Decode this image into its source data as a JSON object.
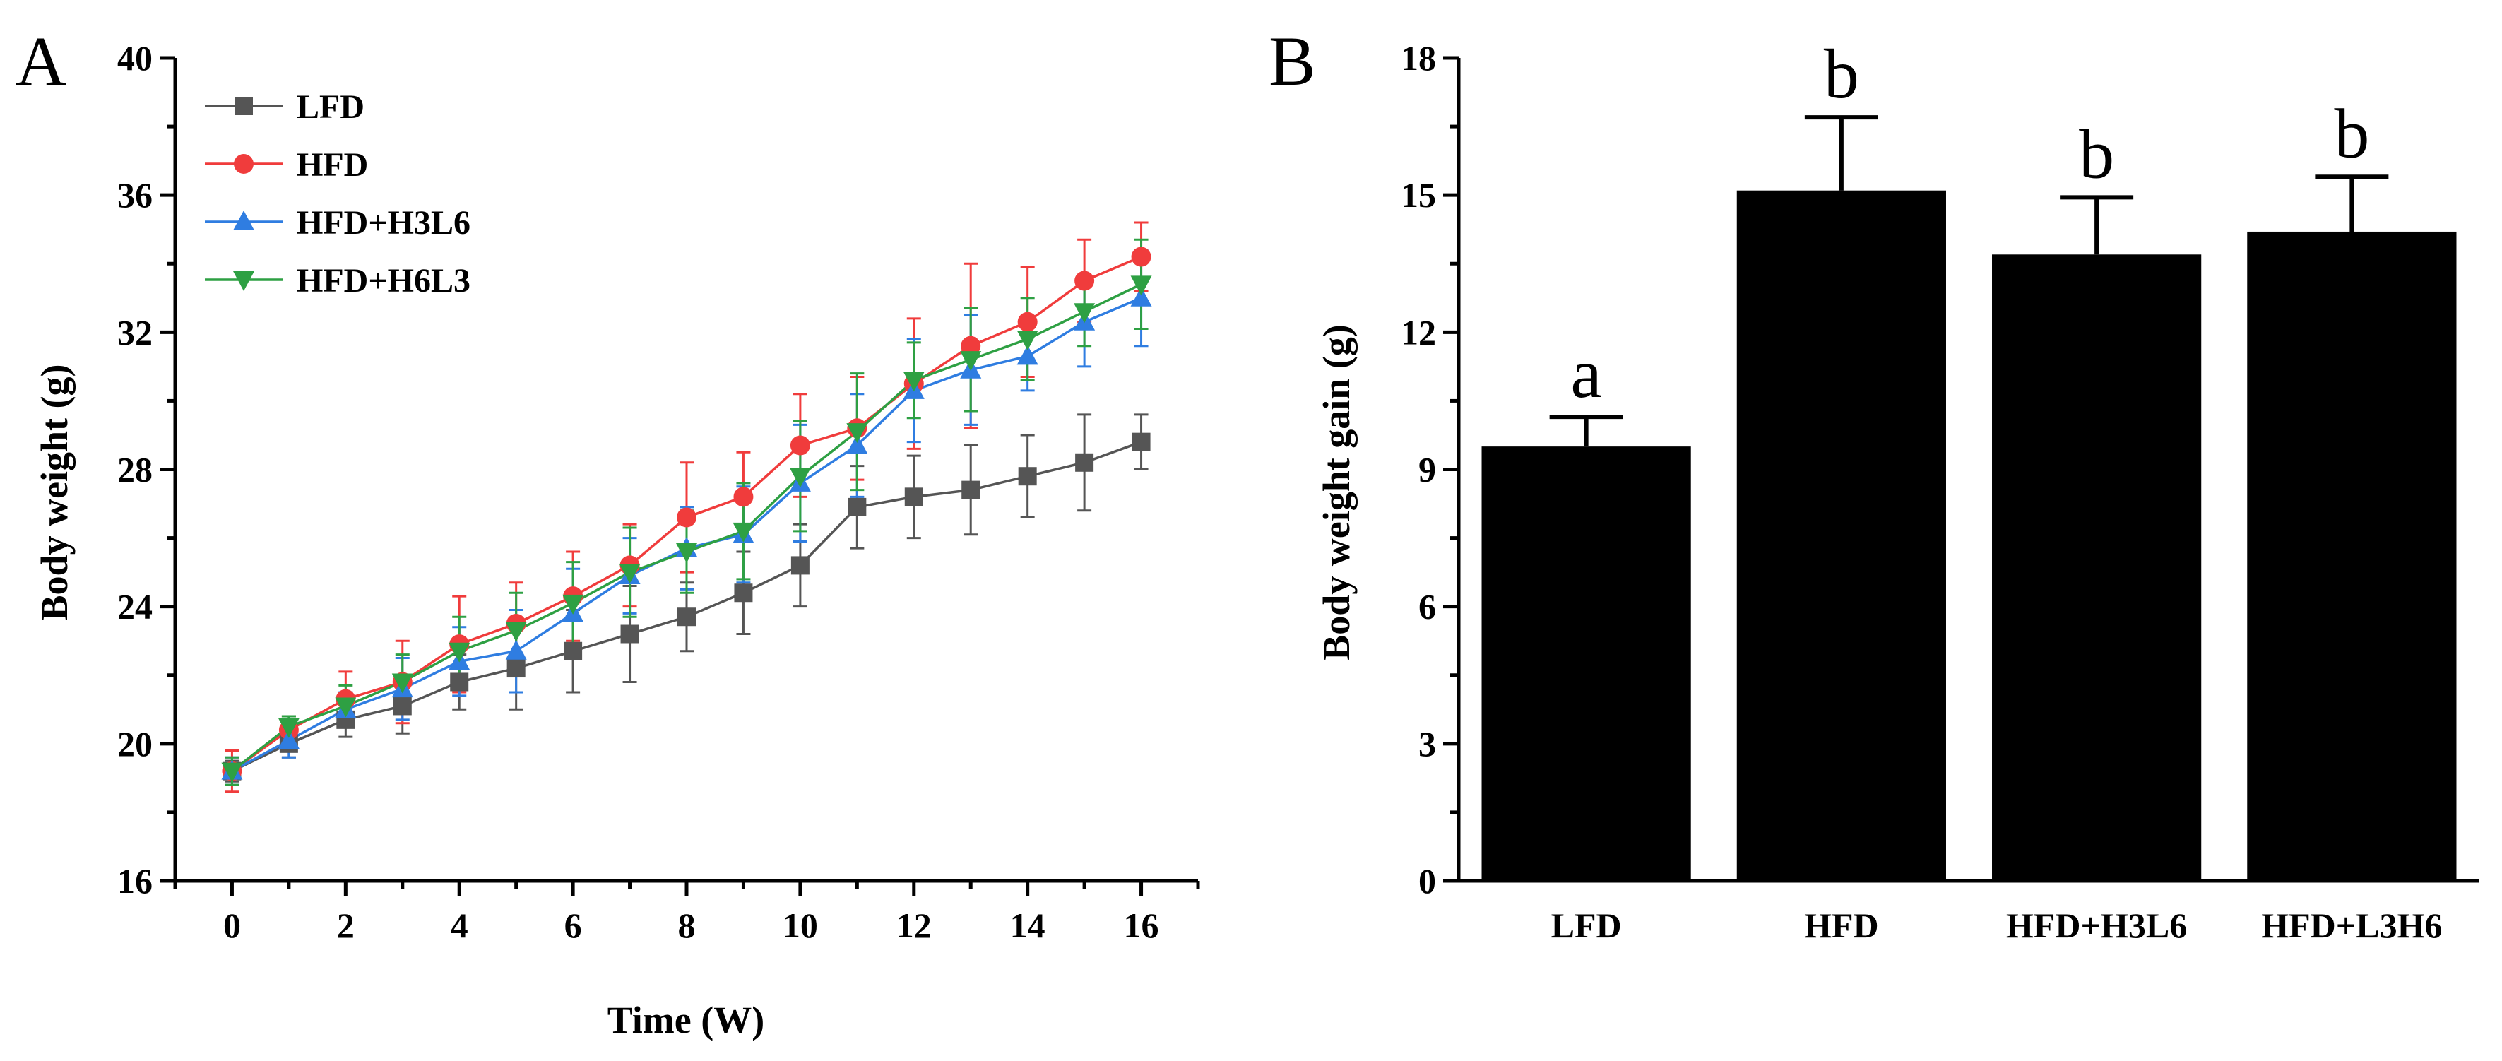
{
  "chart_data": [
    {
      "panel": "A",
      "type": "line",
      "xlabel": "Time (W)",
      "ylabel": "Body weight (g)",
      "xlim": [
        -1,
        17
      ],
      "ylim": [
        16,
        40
      ],
      "xticks": [
        0,
        2,
        4,
        6,
        8,
        10,
        12,
        14,
        16
      ],
      "yticks": [
        16,
        20,
        24,
        28,
        32,
        36,
        40
      ],
      "legend_position": "top-left",
      "x": [
        0,
        1,
        2,
        3,
        4,
        5,
        6,
        7,
        8,
        9,
        10,
        11,
        12,
        13,
        14,
        15,
        16
      ],
      "series": [
        {
          "name": "LFD",
          "color": "#555555",
          "marker": "square",
          "values": [
            19.2,
            20.0,
            20.7,
            21.1,
            21.8,
            22.2,
            22.7,
            23.2,
            23.7,
            24.4,
            25.2,
            26.9,
            27.2,
            27.4,
            27.8,
            28.2,
            28.8
          ],
          "errors": [
            0.3,
            0.4,
            0.5,
            0.8,
            0.8,
            1.2,
            1.2,
            1.4,
            1.0,
            1.2,
            1.2,
            1.2,
            1.2,
            1.3,
            1.2,
            1.4,
            0.8
          ]
        },
        {
          "name": "HFD",
          "color": "#f03c3c",
          "marker": "circle",
          "values": [
            19.2,
            20.4,
            21.3,
            21.8,
            22.9,
            23.5,
            24.3,
            25.2,
            26.6,
            27.2,
            28.7,
            29.2,
            30.5,
            31.6,
            32.3,
            33.5,
            34.2
          ],
          "errors": [
            0.6,
            0.4,
            0.8,
            1.2,
            1.4,
            1.2,
            1.3,
            1.2,
            1.6,
            1.3,
            1.5,
            1.5,
            1.9,
            2.4,
            1.6,
            1.2,
            1.0
          ]
        },
        {
          "name": "HFD+H3L6",
          "color": "#2f7de1",
          "marker": "triangle-up",
          "values": [
            19.2,
            20.1,
            21.0,
            21.6,
            22.4,
            22.7,
            23.8,
            24.9,
            25.7,
            26.1,
            27.6,
            28.7,
            30.3,
            30.9,
            31.3,
            32.3,
            33.0
          ],
          "errors": [
            0.4,
            0.5,
            0.5,
            0.9,
            1.0,
            1.2,
            1.3,
            1.1,
            1.2,
            1.4,
            1.7,
            1.5,
            1.5,
            1.6,
            1.0,
            1.3,
            1.4
          ]
        },
        {
          "name": "HFD+H6L3",
          "color": "#2ea043",
          "marker": "triangle-down",
          "values": [
            19.2,
            20.5,
            21.1,
            21.8,
            22.7,
            23.3,
            24.1,
            25.0,
            25.6,
            26.2,
            27.8,
            29.1,
            30.6,
            31.2,
            31.8,
            32.6,
            33.4
          ],
          "errors": [
            0.4,
            0.3,
            0.6,
            0.8,
            1.0,
            1.1,
            1.2,
            1.3,
            1.2,
            1.4,
            1.6,
            1.7,
            1.1,
            1.5,
            1.2,
            1.0,
            1.3
          ]
        }
      ]
    },
    {
      "panel": "B",
      "type": "bar",
      "xlabel": "",
      "ylabel": "Body weight gain (g)",
      "ylim": [
        0,
        18
      ],
      "yticks": [
        0,
        3,
        6,
        9,
        12,
        15,
        18
      ],
      "categories": [
        "LFD",
        "HFD",
        "HFD+H3L6",
        "HFD+L3H6"
      ],
      "values": [
        9.5,
        15.1,
        13.7,
        14.2
      ],
      "errors": [
        0.65,
        1.6,
        1.25,
        1.2
      ],
      "significance": [
        "a",
        "b",
        "b",
        "b"
      ],
      "bar_color": "#000000"
    }
  ]
}
